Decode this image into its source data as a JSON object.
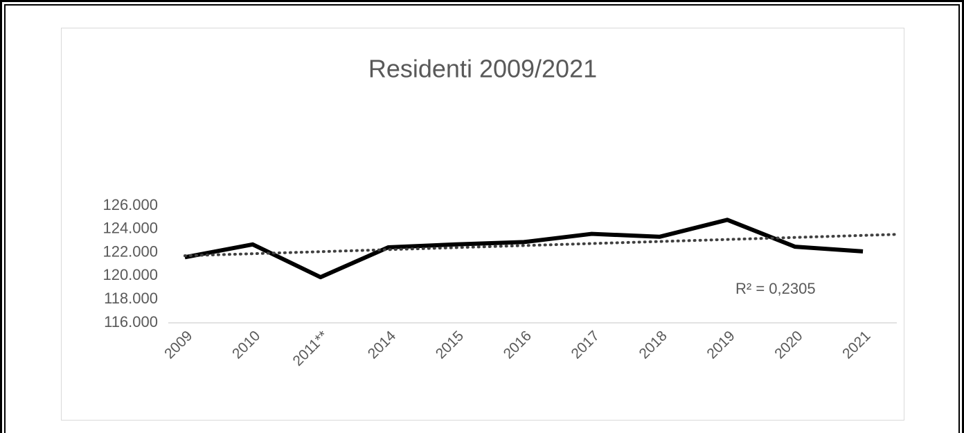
{
  "chart_data": {
    "type": "line",
    "title": "Residenti 2009/2021",
    "categories": [
      "2009",
      "2010",
      "2011**",
      "2014",
      "2015",
      "2016",
      "2017",
      "2018",
      "2019",
      "2020",
      "2021"
    ],
    "series": [
      {
        "name": "Residenti",
        "color": "#000000",
        "values": [
          121600,
          122700,
          119900,
          122450,
          122700,
          122900,
          123600,
          123350,
          124800,
          122500,
          122100
        ]
      }
    ],
    "ylim": [
      116000,
      126000
    ],
    "yticks": [
      {
        "value": 116000,
        "label": "116.000"
      },
      {
        "value": 118000,
        "label": "118.000"
      },
      {
        "value": 120000,
        "label": "120.000"
      },
      {
        "value": 122000,
        "label": "122.000"
      },
      {
        "value": 124000,
        "label": "124.000"
      },
      {
        "value": 126000,
        "label": "126.000"
      }
    ],
    "trendline": {
      "type": "linear",
      "color": "#404040",
      "label": "R² = 0,2305"
    }
  }
}
